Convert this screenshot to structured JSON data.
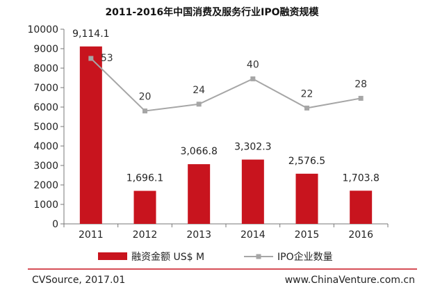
{
  "chart_data": {
    "type": "bar",
    "title": "2011-2016年中国消费及服务行业IPO融资规模",
    "categories": [
      "2011",
      "2012",
      "2013",
      "2014",
      "2015",
      "2016"
    ],
    "ylim": [
      0,
      10000
    ],
    "yticks": [
      "0",
      "1000",
      "2000",
      "3000",
      "4000",
      "5000",
      "6000",
      "7000",
      "8000",
      "9000",
      "10000"
    ],
    "grid": false,
    "legend_position": "bottom",
    "series": [
      {
        "name": "融资金额 US$ M",
        "type": "bar",
        "color": "#c8141e",
        "values": [
          9114.1,
          1696.1,
          3066.8,
          3302.3,
          2576.5,
          1703.8
        ],
        "labels": [
          "9,114.1",
          "1,696.1",
          "3,066.8",
          "3,302.3",
          "2,576.5",
          "1,703.8"
        ]
      },
      {
        "name": "IPO企业数量",
        "type": "line",
        "color": "#a6a6a6",
        "values": [
          53,
          20,
          24,
          40,
          22,
          28
        ],
        "labels": [
          "53",
          "20",
          "24",
          "40",
          "22",
          "28"
        ],
        "plotted_on_axis_at": [
          8500,
          5800,
          6150,
          7450,
          5950,
          6450
        ]
      }
    ]
  },
  "footer": {
    "source": "CVSource, 2017.01",
    "website": "www.ChinaVenture.com.cn",
    "rule_color": "#c8141e"
  }
}
